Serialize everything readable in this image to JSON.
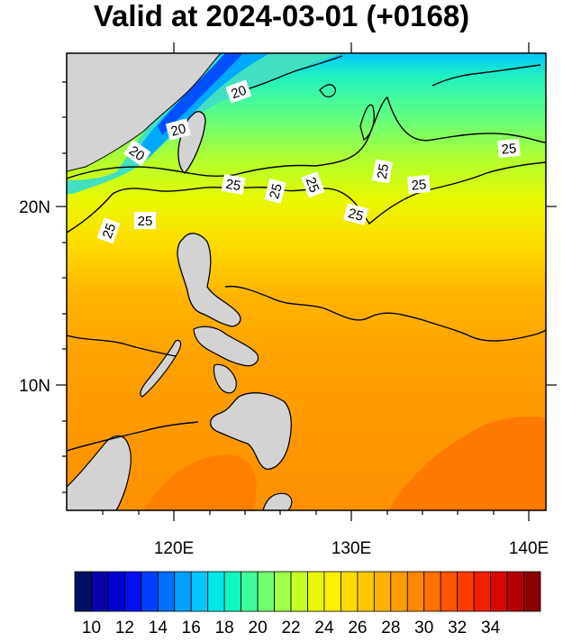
{
  "title": "Valid at 2024-03-01 (+0168)",
  "map": {
    "lon_range": [
      114,
      141
    ],
    "lat_range": [
      3,
      29
    ],
    "field_colors": {
      "land": "#d3d3d3",
      "contour_line": "#000000"
    }
  },
  "axes": {
    "x_ticks": [
      "120E",
      "130E",
      "140E"
    ],
    "y_ticks": [
      "20N",
      "10N"
    ]
  },
  "contour_labels": [
    "20",
    "20",
    "20",
    "25",
    "25",
    "25",
    "25",
    "25",
    "25",
    "25",
    "25",
    "25"
  ],
  "colorbar": {
    "labels": [
      "10",
      "12",
      "14",
      "16",
      "18",
      "20",
      "22",
      "24",
      "26",
      "28",
      "30",
      "32",
      "34"
    ],
    "colors": [
      "#010f60",
      "#0a00a8",
      "#0000d0",
      "#0010f0",
      "#0040ff",
      "#0070ff",
      "#00a0ff",
      "#00c8ff",
      "#00e8e8",
      "#10f8c0",
      "#40ff98",
      "#70ff70",
      "#a0ff48",
      "#c8ff28",
      "#e8f800",
      "#fff000",
      "#ffdc00",
      "#ffc800",
      "#ffb000",
      "#ff9c00",
      "#ff8800",
      "#ff7000",
      "#ff5400",
      "#ff3c00",
      "#f02000",
      "#d80800",
      "#b40000",
      "#8c0000"
    ]
  }
}
